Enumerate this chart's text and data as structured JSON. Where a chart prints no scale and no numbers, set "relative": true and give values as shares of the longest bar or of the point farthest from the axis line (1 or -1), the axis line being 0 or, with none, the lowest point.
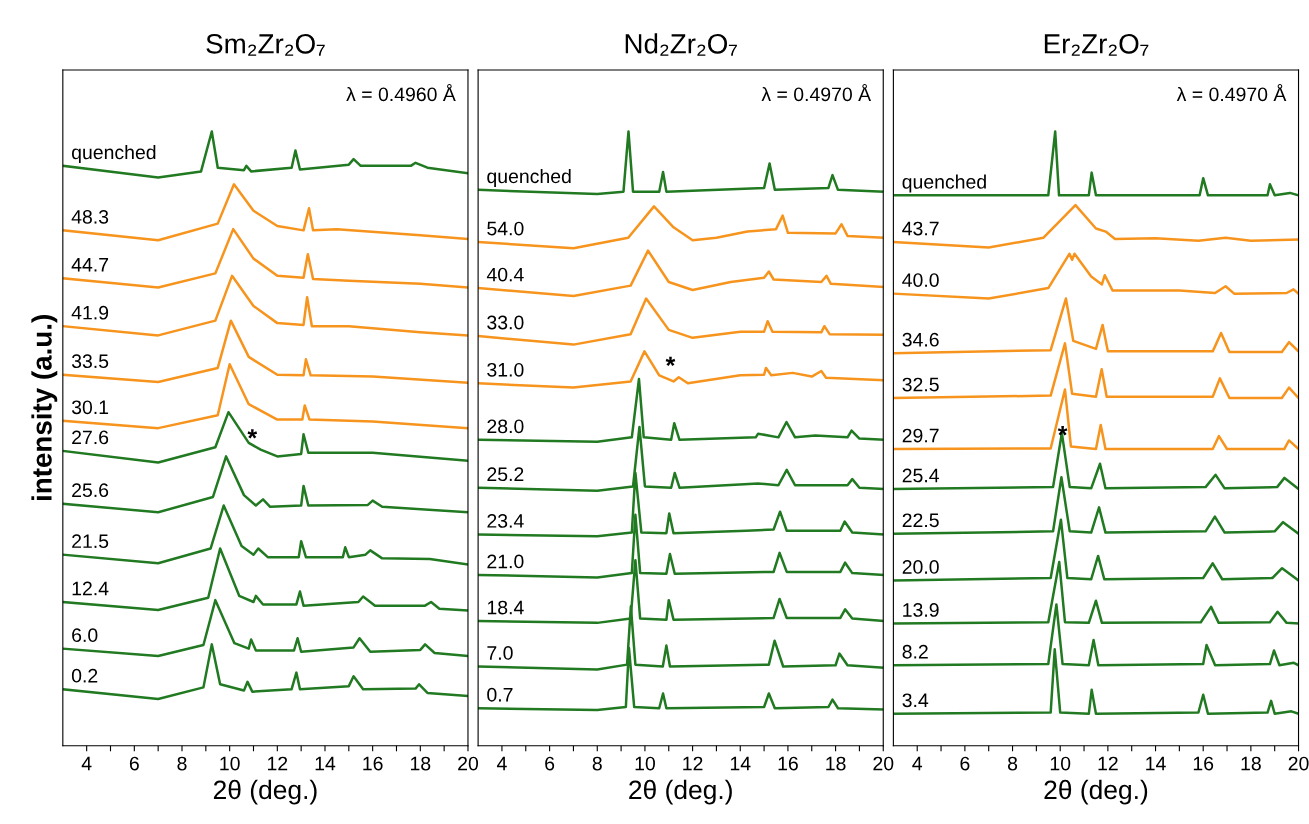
{
  "chart_data": [
    {
      "type": "line",
      "title": "Sm₂Zr₂O₇",
      "xlabel": "2θ (deg.)",
      "ylabel": "intensity (a.u.)",
      "relative": true,
      "grid": false,
      "xlim": [
        3,
        20
      ],
      "xticks": [
        4,
        {
          "value": 5,
          "label": null
        },
        6,
        {
          "value": 7,
          "label": null
        },
        8,
        {
          "value": 9,
          "label": null
        },
        10,
        {
          "value": 11,
          "label": null
        },
        12,
        {
          "value": 13,
          "label": null
        },
        14,
        {
          "value": 15,
          "label": null
        },
        16,
        {
          "value": 17,
          "label": null
        },
        18,
        {
          "value": 19,
          "label": null
        },
        20
      ],
      "annotations": [
        "λ = 0.4960 Å",
        {
          "text": "*",
          "x": 11.3,
          "y": 0.482
        }
      ],
      "series": [
        {
          "name": "quenched",
          "color": "#217a21",
          "x": [
            3,
            7,
            8.8,
            9.25,
            9.5,
            10.6,
            10.7,
            10.9,
            12.6,
            12.76,
            12.95,
            15,
            15.2,
            15.5,
            17.6,
            17.8,
            18.3,
            20
          ],
          "values": [
            0.944,
            0.925,
            0.935,
            1.0,
            0.941,
            0.937,
            0.944,
            0.935,
            0.941,
            0.969,
            0.938,
            0.946,
            0.955,
            0.944,
            0.944,
            0.949,
            0.941,
            0.932
          ]
        },
        {
          "name": "48.3",
          "color": "#f7941d",
          "x": [
            3,
            7,
            9.5,
            10.18,
            11,
            12,
            13.1,
            13.33,
            13.5,
            14.5,
            18,
            20
          ],
          "values": [
            0.839,
            0.823,
            0.85,
            0.914,
            0.871,
            0.846,
            0.839,
            0.875,
            0.839,
            0.841,
            0.831,
            0.825
          ]
        },
        {
          "name": "44.7",
          "color": "#f7941d",
          "x": [
            3,
            7,
            9.4,
            10.15,
            11,
            12,
            13.1,
            13.28,
            13.5,
            15,
            18,
            20
          ],
          "values": [
            0.761,
            0.746,
            0.769,
            0.841,
            0.793,
            0.765,
            0.762,
            0.8,
            0.76,
            0.757,
            0.752,
            0.746
          ]
        },
        {
          "name": "41.9",
          "color": "#f7941d",
          "x": [
            3,
            7,
            9.4,
            10.1,
            11,
            12,
            13.1,
            13.25,
            13.45,
            15,
            18,
            20
          ],
          "values": [
            0.683,
            0.668,
            0.692,
            0.765,
            0.716,
            0.688,
            0.685,
            0.73,
            0.683,
            0.683,
            0.673,
            0.668
          ]
        },
        {
          "name": "33.5",
          "color": "#f7941d",
          "x": [
            3,
            7,
            9.5,
            10.05,
            10.8,
            12,
            13.1,
            13.2,
            13.4,
            16,
            20
          ],
          "values": [
            0.604,
            0.592,
            0.615,
            0.692,
            0.633,
            0.604,
            0.603,
            0.629,
            0.603,
            0.601,
            0.591
          ]
        },
        {
          "name": "30.1",
          "color": "#f7941d",
          "x": [
            3,
            7,
            9.5,
            10.0,
            10.8,
            12,
            13.05,
            13.15,
            13.35,
            16,
            20
          ],
          "values": [
            0.529,
            0.517,
            0.538,
            0.621,
            0.556,
            0.531,
            0.531,
            0.554,
            0.531,
            0.528,
            0.517
          ]
        },
        {
          "name": "27.6",
          "color": "#217a21",
          "x": [
            3,
            7,
            9.4,
            9.95,
            10.8,
            11.3,
            12,
            13,
            13.1,
            13.3,
            16,
            20
          ],
          "values": [
            0.48,
            0.461,
            0.486,
            0.543,
            0.493,
            0.482,
            0.471,
            0.475,
            0.507,
            0.477,
            0.477,
            0.464
          ]
        },
        {
          "name": "25.6",
          "color": "#217a21",
          "x": [
            3,
            7,
            9.3,
            9.85,
            10.6,
            11.1,
            11.4,
            11.7,
            13,
            13.1,
            13.3,
            15.8,
            16,
            16.4,
            20
          ],
          "values": [
            0.394,
            0.38,
            0.405,
            0.471,
            0.408,
            0.391,
            0.401,
            0.389,
            0.391,
            0.423,
            0.391,
            0.392,
            0.399,
            0.389,
            0.38
          ]
        },
        {
          "name": "21.5",
          "color": "#217a21",
          "x": [
            3,
            7,
            9.2,
            9.75,
            10.5,
            11.0,
            11.2,
            11.6,
            12.9,
            13.0,
            13.2,
            14.75,
            14.85,
            15.0,
            15.7,
            15.9,
            16.4,
            18.4,
            20
          ],
          "values": [
            0.311,
            0.297,
            0.321,
            0.391,
            0.325,
            0.311,
            0.321,
            0.307,
            0.307,
            0.333,
            0.307,
            0.307,
            0.323,
            0.307,
            0.311,
            0.318,
            0.305,
            0.304,
            0.295
          ]
        },
        {
          "name": "12.4",
          "color": "#217a21",
          "x": [
            3,
            7,
            9.1,
            9.6,
            10.4,
            11.0,
            11.1,
            11.4,
            12.8,
            12.95,
            13.1,
            15.4,
            15.6,
            16.1,
            18.2,
            18.45,
            18.8,
            20
          ],
          "values": [
            0.234,
            0.221,
            0.241,
            0.321,
            0.244,
            0.234,
            0.244,
            0.23,
            0.23,
            0.251,
            0.228,
            0.234,
            0.243,
            0.228,
            0.228,
            0.234,
            0.223,
            0.22
          ]
        },
        {
          "name": "6.0",
          "color": "#217a21",
          "x": [
            3,
            7,
            8.9,
            9.4,
            10.2,
            10.8,
            10.9,
            11.1,
            12.7,
            12.85,
            13.0,
            15.2,
            15.45,
            15.9,
            18.0,
            18.2,
            18.6,
            20
          ],
          "values": [
            0.158,
            0.146,
            0.164,
            0.237,
            0.167,
            0.158,
            0.173,
            0.155,
            0.155,
            0.175,
            0.153,
            0.16,
            0.175,
            0.153,
            0.156,
            0.165,
            0.151,
            0.146
          ]
        },
        {
          "name": "0.2",
          "color": "#217a21",
          "x": [
            3,
            7,
            8.9,
            9.25,
            9.6,
            10.6,
            10.75,
            10.95,
            12.6,
            12.8,
            12.95,
            15.0,
            15.2,
            15.6,
            17.8,
            17.95,
            18.3,
            20
          ],
          "values": [
            0.092,
            0.076,
            0.095,
            0.165,
            0.1,
            0.09,
            0.104,
            0.088,
            0.092,
            0.119,
            0.092,
            0.097,
            0.113,
            0.092,
            0.093,
            0.1,
            0.086,
            0.081
          ]
        }
      ]
    },
    {
      "type": "line",
      "title": "Nd₂Zr₂O₇",
      "xlabel": "2θ (deg.)",
      "relative": true,
      "grid": false,
      "xlim": [
        3,
        20
      ],
      "xticks": [
        4,
        {
          "value": 5,
          "label": null
        },
        6,
        {
          "value": 7,
          "label": null
        },
        8,
        {
          "value": 9,
          "label": null
        },
        10,
        {
          "value": 11,
          "label": null
        },
        12,
        {
          "value": 13,
          "label": null
        },
        14,
        {
          "value": 15,
          "label": null
        },
        16,
        {
          "value": 17,
          "label": null
        },
        18,
        {
          "value": 19,
          "label": null
        },
        20
      ],
      "annotations": [
        "λ = 0.4970 Å",
        {
          "text": "*",
          "x": 11.42,
          "y": 0.6
        }
      ],
      "series": [
        {
          "name": "quenched",
          "color": "#217a21",
          "x": [
            3,
            8,
            9.1,
            9.31,
            9.5,
            10.6,
            10.76,
            10.9,
            15.0,
            15.23,
            15.45,
            17.7,
            17.87,
            18.1,
            20
          ],
          "values": [
            0.905,
            0.898,
            0.902,
            1.0,
            0.902,
            0.902,
            0.934,
            0.902,
            0.908,
            0.948,
            0.905,
            0.908,
            0.929,
            0.905,
            0.902
          ]
        },
        {
          "name": "54.0",
          "color": "#f7941d",
          "x": [
            3,
            7,
            9.3,
            10.38,
            11.2,
            12,
            13,
            14.3,
            15.5,
            15.78,
            16,
            18.0,
            18.25,
            18.5,
            20
          ],
          "values": [
            0.82,
            0.81,
            0.827,
            0.878,
            0.844,
            0.823,
            0.827,
            0.837,
            0.841,
            0.863,
            0.835,
            0.834,
            0.849,
            0.83,
            0.827
          ]
        },
        {
          "name": "40.4",
          "color": "#f7941d",
          "x": [
            3,
            7,
            9.4,
            10.13,
            11,
            12,
            13.6,
            15,
            15.2,
            15.4,
            17.4,
            17.62,
            17.8,
            20
          ],
          "values": [
            0.745,
            0.732,
            0.749,
            0.806,
            0.755,
            0.742,
            0.755,
            0.762,
            0.772,
            0.759,
            0.755,
            0.765,
            0.752,
            0.747
          ]
        },
        {
          "name": "33.0",
          "color": "#f7941d",
          "x": [
            3,
            7,
            9.4,
            10.05,
            11,
            12,
            14,
            15,
            15.15,
            15.35,
            17.4,
            17.53,
            17.75,
            20
          ],
          "values": [
            0.667,
            0.653,
            0.67,
            0.728,
            0.677,
            0.664,
            0.674,
            0.674,
            0.691,
            0.674,
            0.673,
            0.683,
            0.67,
            0.669
          ]
        },
        {
          "name": "31.0",
          "color": "#f7941d",
          "x": [
            3,
            7,
            9.4,
            9.98,
            10.6,
            11.2,
            11.42,
            11.8,
            14,
            15,
            15.08,
            15.3,
            16.2,
            17.0,
            17.4,
            17.6,
            20
          ],
          "values": [
            0.59,
            0.583,
            0.593,
            0.642,
            0.603,
            0.593,
            0.6,
            0.59,
            0.603,
            0.604,
            0.615,
            0.603,
            0.607,
            0.601,
            0.61,
            0.599,
            0.595
          ]
        },
        {
          "name": "28.0",
          "color": "#217a21",
          "x": [
            3,
            8,
            9.45,
            9.75,
            9.95,
            11.1,
            11.23,
            11.45,
            14.65,
            14.75,
            15.6,
            15.94,
            16.3,
            17.15,
            18.5,
            18.67,
            19.0,
            20
          ],
          "values": [
            0.498,
            0.495,
            0.502,
            0.597,
            0.502,
            0.498,
            0.525,
            0.498,
            0.502,
            0.508,
            0.502,
            0.527,
            0.502,
            0.505,
            0.502,
            0.513,
            0.5,
            0.498
          ]
        },
        {
          "name": "25.2",
          "color": "#217a21",
          "x": [
            3,
            8,
            9.5,
            9.77,
            10.0,
            11.1,
            11.25,
            11.45,
            14.75,
            15.6,
            15.95,
            16.3,
            17.15,
            18.5,
            18.7,
            19,
            20
          ],
          "values": [
            0.42,
            0.415,
            0.422,
            0.519,
            0.422,
            0.42,
            0.444,
            0.42,
            0.427,
            0.424,
            0.449,
            0.424,
            0.424,
            0.424,
            0.434,
            0.42,
            0.418
          ]
        },
        {
          "name": "23.4",
          "color": "#217a21",
          "x": [
            3,
            8,
            9.45,
            9.6,
            9.85,
            10.9,
            11.02,
            11.2,
            14.25,
            15.4,
            15.67,
            15.95,
            18.2,
            18.38,
            18.7,
            20
          ],
          "values": [
            0.344,
            0.341,
            0.347,
            0.444,
            0.347,
            0.346,
            0.378,
            0.346,
            0.35,
            0.352,
            0.381,
            0.35,
            0.35,
            0.365,
            0.347,
            0.344
          ]
        },
        {
          "name": "21.0",
          "color": "#217a21",
          "x": [
            3,
            8,
            9.45,
            9.6,
            9.8,
            10.9,
            11.05,
            11.25,
            15.4,
            15.65,
            15.95,
            18.2,
            18.4,
            18.7,
            20
          ],
          "values": [
            0.278,
            0.274,
            0.281,
            0.376,
            0.281,
            0.28,
            0.312,
            0.28,
            0.283,
            0.314,
            0.283,
            0.283,
            0.298,
            0.281,
            0.278
          ]
        },
        {
          "name": "18.4",
          "color": "#217a21",
          "x": [
            3,
            8,
            9.4,
            9.6,
            9.8,
            10.9,
            11.0,
            11.2,
            15.4,
            15.65,
            15.95,
            18.2,
            18.4,
            18.7,
            20
          ],
          "values": [
            0.203,
            0.2,
            0.207,
            0.302,
            0.207,
            0.205,
            0.237,
            0.205,
            0.208,
            0.239,
            0.208,
            0.208,
            0.222,
            0.207,
            0.203
          ]
        },
        {
          "name": "7.0",
          "color": "#217a21",
          "x": [
            3,
            8,
            9.25,
            9.41,
            9.6,
            10.75,
            10.9,
            11.05,
            15.2,
            15.44,
            15.8,
            18.0,
            18.16,
            18.5,
            20
          ],
          "values": [
            0.129,
            0.124,
            0.132,
            0.227,
            0.132,
            0.129,
            0.163,
            0.129,
            0.132,
            0.171,
            0.129,
            0.131,
            0.15,
            0.131,
            0.127
          ]
        },
        {
          "name": "0.7",
          "color": "#217a21",
          "x": [
            3,
            8,
            9.2,
            9.33,
            9.55,
            10.6,
            10.76,
            10.9,
            15.0,
            15.2,
            15.45,
            17.7,
            17.87,
            18.1,
            20
          ],
          "values": [
            0.061,
            0.058,
            0.063,
            0.159,
            0.063,
            0.061,
            0.085,
            0.061,
            0.063,
            0.085,
            0.061,
            0.063,
            0.075,
            0.061,
            0.059
          ]
        }
      ]
    },
    {
      "type": "line",
      "title": "Er₂Zr₂O₇",
      "xlabel": "2θ (deg.)",
      "relative": true,
      "grid": false,
      "xlim": [
        3,
        20
      ],
      "xticks": [
        4,
        {
          "value": 5,
          "label": null
        },
        6,
        {
          "value": 7,
          "label": null
        },
        8,
        {
          "value": 9,
          "label": null
        },
        10,
        {
          "value": 11,
          "label": null
        },
        12,
        {
          "value": 13,
          "label": null
        },
        14,
        {
          "value": 15,
          "label": null
        },
        16,
        {
          "value": 17,
          "label": null
        },
        18,
        {
          "value": 19,
          "label": null
        },
        20
      ],
      "annotations": [
        "λ = 0.4970 Å",
        {
          "text": "*",
          "x": 10.45,
          "y": 0.487
        }
      ],
      "series": [
        {
          "name": "quenched",
          "color": "#217a21",
          "x": [
            3,
            9.5,
            9.79,
            9.95,
            11.2,
            11.32,
            11.5,
            15.85,
            16.0,
            16.2,
            18.7,
            18.8,
            19.0,
            19.64,
            20
          ],
          "values": [
            0.896,
            0.896,
            1.0,
            0.896,
            0.896,
            0.933,
            0.896,
            0.896,
            0.924,
            0.896,
            0.896,
            0.914,
            0.896,
            0.9,
            0.896
          ]
        },
        {
          "name": "43.7",
          "color": "#f7941d",
          "x": [
            3,
            7,
            9.3,
            10.64,
            11.5,
            11.91,
            12.3,
            14,
            15.8,
            16.94,
            18,
            20
          ],
          "values": [
            0.82,
            0.811,
            0.827,
            0.88,
            0.842,
            0.837,
            0.825,
            0.826,
            0.822,
            0.827,
            0.822,
            0.824
          ]
        },
        {
          "name": "40.0",
          "color": "#f7941d",
          "x": [
            3,
            7,
            9.5,
            10.39,
            10.5,
            10.6,
            11.3,
            11.75,
            11.87,
            12.2,
            15,
            16.5,
            16.94,
            17.3,
            19.5,
            19.79,
            20
          ],
          "values": [
            0.736,
            0.728,
            0.745,
            0.801,
            0.791,
            0.801,
            0.764,
            0.751,
            0.766,
            0.741,
            0.741,
            0.737,
            0.748,
            0.736,
            0.737,
            0.743,
            0.736
          ]
        },
        {
          "name": "34.6",
          "color": "#f7941d",
          "x": [
            3,
            9.6,
            10.24,
            10.55,
            11.5,
            11.78,
            12.0,
            16.4,
            16.75,
            17.1,
            19.3,
            19.6,
            20
          ],
          "values": [
            0.639,
            0.644,
            0.728,
            0.659,
            0.646,
            0.685,
            0.642,
            0.642,
            0.672,
            0.641,
            0.641,
            0.657,
            0.642
          ]
        },
        {
          "name": "32.5",
          "color": "#f7941d",
          "x": [
            3,
            9.6,
            10.2,
            10.5,
            11.5,
            11.74,
            11.95,
            16.4,
            16.7,
            17.1,
            19.3,
            19.6,
            20
          ],
          "values": [
            0.566,
            0.57,
            0.655,
            0.573,
            0.568,
            0.613,
            0.568,
            0.568,
            0.598,
            0.566,
            0.566,
            0.583,
            0.566
          ]
        },
        {
          "name": "29.7",
          "color": "#f7941d",
          "x": [
            3,
            9.6,
            10.2,
            10.45,
            11.5,
            11.7,
            11.9,
            16.4,
            16.66,
            17,
            19.4,
            19.6,
            20
          ],
          "values": [
            0.483,
            0.484,
            0.58,
            0.487,
            0.483,
            0.522,
            0.483,
            0.483,
            0.504,
            0.483,
            0.483,
            0.497,
            0.483
          ]
        },
        {
          "name": "25.4",
          "color": "#217a21",
          "x": [
            3,
            9.7,
            10.07,
            10.4,
            11.3,
            11.67,
            11.9,
            16.1,
            16.52,
            16.9,
            19.1,
            19.41,
            20
          ],
          "values": [
            0.418,
            0.421,
            0.509,
            0.421,
            0.419,
            0.459,
            0.419,
            0.421,
            0.441,
            0.419,
            0.421,
            0.436,
            0.418
          ]
        },
        {
          "name": "22.5",
          "color": "#217a21",
          "x": [
            3,
            9.7,
            10.05,
            10.4,
            11.3,
            11.63,
            11.9,
            16.1,
            16.49,
            16.9,
            19.0,
            19.35,
            20
          ],
          "values": [
            0.345,
            0.349,
            0.437,
            0.349,
            0.347,
            0.388,
            0.347,
            0.349,
            0.373,
            0.347,
            0.349,
            0.364,
            0.345
          ]
        },
        {
          "name": "20.0",
          "color": "#217a21",
          "x": [
            3,
            9.6,
            10.03,
            10.3,
            11.3,
            11.59,
            11.85,
            16.0,
            16.4,
            16.8,
            18.9,
            19.31,
            20
          ],
          "values": [
            0.269,
            0.273,
            0.368,
            0.273,
            0.271,
            0.309,
            0.271,
            0.273,
            0.297,
            0.271,
            0.273,
            0.289,
            0.269
          ]
        },
        {
          "name": "13.9",
          "color": "#217a21",
          "x": [
            3,
            9.5,
            9.96,
            10.2,
            11.2,
            11.5,
            11.75,
            15.9,
            16.33,
            16.65,
            18.8,
            19.12,
            19.5,
            20
          ],
          "values": [
            0.199,
            0.201,
            0.299,
            0.201,
            0.2,
            0.236,
            0.2,
            0.201,
            0.226,
            0.2,
            0.201,
            0.218,
            0.2,
            0.199
          ]
        },
        {
          "name": "8.2",
          "color": "#217a21",
          "x": [
            3,
            9.5,
            9.84,
            10.1,
            11.2,
            11.4,
            11.6,
            16.0,
            16.14,
            16.5,
            18.8,
            18.97,
            19.2,
            19.8,
            20
          ],
          "values": [
            0.131,
            0.133,
            0.23,
            0.133,
            0.131,
            0.172,
            0.131,
            0.133,
            0.164,
            0.131,
            0.133,
            0.155,
            0.131,
            0.135,
            0.131
          ]
        },
        {
          "name": "3.4",
          "color": "#217a21",
          "x": [
            3,
            9.6,
            9.77,
            10.0,
            11.2,
            11.32,
            11.5,
            15.8,
            16.0,
            16.2,
            18.7,
            18.85,
            19.0,
            19.7,
            20
          ],
          "values": [
            0.052,
            0.054,
            0.157,
            0.054,
            0.052,
            0.091,
            0.052,
            0.054,
            0.083,
            0.052,
            0.054,
            0.073,
            0.052,
            0.056,
            0.052
          ]
        }
      ]
    }
  ]
}
